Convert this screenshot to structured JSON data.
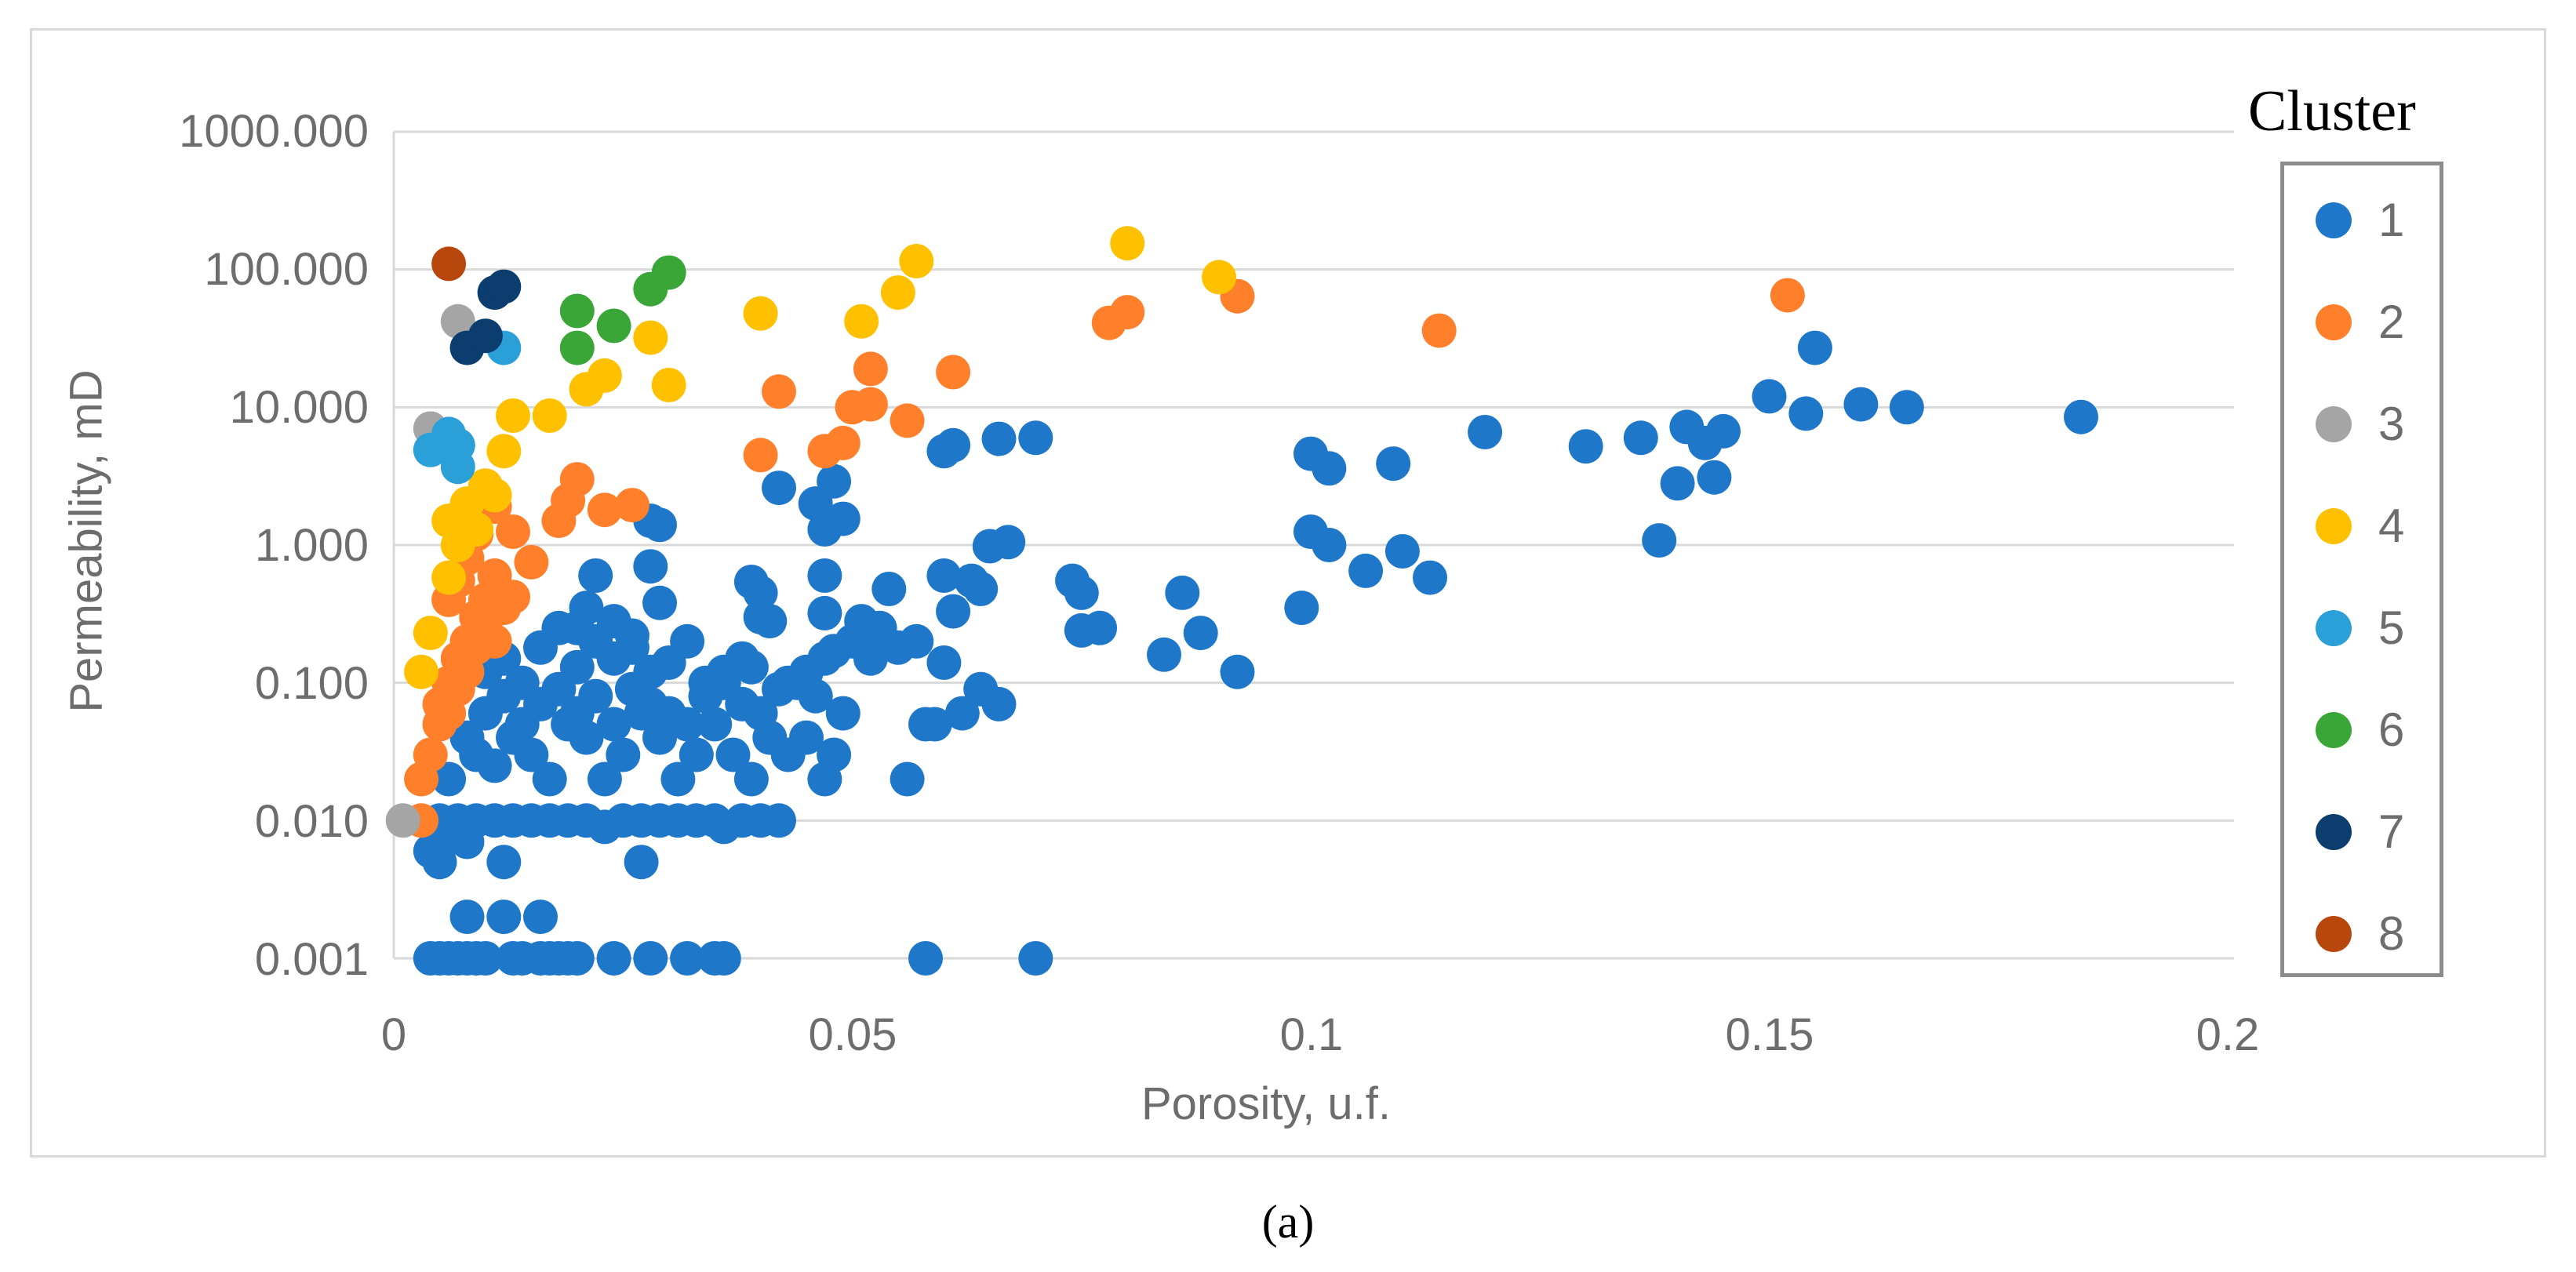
{
  "caption": "(a)",
  "chart_data": {
    "type": "scatter",
    "title": "",
    "xlabel": "Porosity, u.f.",
    "ylabel": "Permeability, mD",
    "xlim": [
      0,
      0.2
    ],
    "ylim": [
      0.001,
      1000
    ],
    "yscale": "log",
    "x_ticks": [
      0,
      0.05,
      0.1,
      0.15,
      0.2
    ],
    "x_tick_labels": [
      "0",
      "0.05",
      "0.1",
      "0.15",
      "0.2"
    ],
    "y_ticks": [
      0.001,
      0.01,
      0.1,
      1,
      10,
      100,
      1000
    ],
    "y_tick_labels": [
      "0.001",
      "0.010",
      "0.100",
      "1.000",
      "10.000",
      "100.000",
      "1000.000"
    ],
    "grid": "horizontal",
    "legend_title": "Cluster",
    "legend_position": "right",
    "series": [
      {
        "name": "1",
        "color": "#1f77c9",
        "points": [
          [
            0.004,
            0.001
          ],
          [
            0.005,
            0.001
          ],
          [
            0.006,
            0.001
          ],
          [
            0.007,
            0.001
          ],
          [
            0.008,
            0.001
          ],
          [
            0.009,
            0.001
          ],
          [
            0.01,
            0.001
          ],
          [
            0.013,
            0.001
          ],
          [
            0.014,
            0.001
          ],
          [
            0.016,
            0.001
          ],
          [
            0.017,
            0.001
          ],
          [
            0.018,
            0.001
          ],
          [
            0.019,
            0.001
          ],
          [
            0.02,
            0.001
          ],
          [
            0.024,
            0.001
          ],
          [
            0.028,
            0.001
          ],
          [
            0.032,
            0.001
          ],
          [
            0.035,
            0.001
          ],
          [
            0.036,
            0.001
          ],
          [
            0.058,
            0.001
          ],
          [
            0.07,
            0.001
          ],
          [
            0.008,
            0.002
          ],
          [
            0.012,
            0.002
          ],
          [
            0.016,
            0.002
          ],
          [
            0.004,
            0.006
          ],
          [
            0.005,
            0.005
          ],
          [
            0.006,
            0.008
          ],
          [
            0.008,
            0.007
          ],
          [
            0.012,
            0.005
          ],
          [
            0.027,
            0.005
          ],
          [
            0.005,
            0.01
          ],
          [
            0.007,
            0.01
          ],
          [
            0.009,
            0.01
          ],
          [
            0.011,
            0.01
          ],
          [
            0.013,
            0.01
          ],
          [
            0.015,
            0.01
          ],
          [
            0.017,
            0.01
          ],
          [
            0.019,
            0.01
          ],
          [
            0.021,
            0.01
          ],
          [
            0.023,
            0.009
          ],
          [
            0.025,
            0.01
          ],
          [
            0.027,
            0.01
          ],
          [
            0.029,
            0.01
          ],
          [
            0.031,
            0.01
          ],
          [
            0.033,
            0.01
          ],
          [
            0.035,
            0.01
          ],
          [
            0.036,
            0.009
          ],
          [
            0.038,
            0.01
          ],
          [
            0.04,
            0.01
          ],
          [
            0.042,
            0.01
          ],
          [
            0.006,
            0.02
          ],
          [
            0.009,
            0.03
          ],
          [
            0.011,
            0.025
          ],
          [
            0.013,
            0.04
          ],
          [
            0.015,
            0.03
          ],
          [
            0.017,
            0.02
          ],
          [
            0.019,
            0.05
          ],
          [
            0.021,
            0.04
          ],
          [
            0.023,
            0.02
          ],
          [
            0.025,
            0.03
          ],
          [
            0.027,
            0.06
          ],
          [
            0.029,
            0.04
          ],
          [
            0.031,
            0.02
          ],
          [
            0.033,
            0.03
          ],
          [
            0.035,
            0.05
          ],
          [
            0.037,
            0.03
          ],
          [
            0.039,
            0.02
          ],
          [
            0.041,
            0.04
          ],
          [
            0.043,
            0.03
          ],
          [
            0.045,
            0.04
          ],
          [
            0.047,
            0.02
          ],
          [
            0.048,
            0.03
          ],
          [
            0.049,
            0.06
          ],
          [
            0.008,
            0.04
          ],
          [
            0.01,
            0.06
          ],
          [
            0.012,
            0.08
          ],
          [
            0.014,
            0.05
          ],
          [
            0.016,
            0.07
          ],
          [
            0.018,
            0.09
          ],
          [
            0.02,
            0.06
          ],
          [
            0.022,
            0.08
          ],
          [
            0.024,
            0.05
          ],
          [
            0.026,
            0.09
          ],
          [
            0.028,
            0.07
          ],
          [
            0.03,
            0.06
          ],
          [
            0.032,
            0.05
          ],
          [
            0.034,
            0.08
          ],
          [
            0.036,
            0.1
          ],
          [
            0.038,
            0.07
          ],
          [
            0.04,
            0.06
          ],
          [
            0.042,
            0.09
          ],
          [
            0.044,
            0.1
          ],
          [
            0.046,
            0.08
          ],
          [
            0.01,
            0.12
          ],
          [
            0.012,
            0.15
          ],
          [
            0.014,
            0.1
          ],
          [
            0.016,
            0.18
          ],
          [
            0.018,
            0.25
          ],
          [
            0.02,
            0.13
          ],
          [
            0.022,
            0.2
          ],
          [
            0.024,
            0.15
          ],
          [
            0.026,
            0.22
          ],
          [
            0.028,
            0.12
          ],
          [
            0.03,
            0.14
          ],
          [
            0.032,
            0.2
          ],
          [
            0.034,
            0.1
          ],
          [
            0.036,
            0.12
          ],
          [
            0.038,
            0.15
          ],
          [
            0.039,
            0.13
          ],
          [
            0.04,
            0.3
          ],
          [
            0.043,
            0.1
          ],
          [
            0.045,
            0.12
          ],
          [
            0.047,
            0.15
          ],
          [
            0.048,
            0.17
          ],
          [
            0.02,
            0.25
          ],
          [
            0.021,
            0.35
          ],
          [
            0.022,
            0.6
          ],
          [
            0.024,
            0.28
          ],
          [
            0.026,
            0.18
          ],
          [
            0.028,
            0.7
          ],
          [
            0.029,
            0.38
          ],
          [
            0.039,
            0.54
          ],
          [
            0.04,
            0.45
          ],
          [
            0.041,
            0.28
          ],
          [
            0.047,
            0.32
          ],
          [
            0.047,
            0.6
          ],
          [
            0.028,
            1.5
          ],
          [
            0.029,
            1.4
          ],
          [
            0.042,
            2.6
          ],
          [
            0.046,
            2.0
          ],
          [
            0.047,
            1.3
          ],
          [
            0.048,
            2.9
          ],
          [
            0.049,
            1.55
          ],
          [
            0.05,
            0.2
          ],
          [
            0.051,
            0.28
          ],
          [
            0.052,
            0.15
          ],
          [
            0.053,
            0.25
          ],
          [
            0.054,
            0.48
          ],
          [
            0.055,
            0.18
          ],
          [
            0.056,
            0.02
          ],
          [
            0.057,
            0.2
          ],
          [
            0.058,
            0.05
          ],
          [
            0.059,
            0.05
          ],
          [
            0.06,
            0.6
          ],
          [
            0.06,
            0.14
          ],
          [
            0.061,
            0.33
          ],
          [
            0.062,
            0.06
          ],
          [
            0.063,
            0.55
          ],
          [
            0.064,
            0.09
          ],
          [
            0.064,
            0.48
          ],
          [
            0.065,
            0.98
          ],
          [
            0.066,
            0.07
          ],
          [
            0.067,
            1.05
          ],
          [
            0.06,
            4.8
          ],
          [
            0.061,
            5.3
          ],
          [
            0.066,
            5.9
          ],
          [
            0.07,
            6.0
          ],
          [
            0.074,
            0.55
          ],
          [
            0.075,
            0.24
          ],
          [
            0.075,
            0.45
          ],
          [
            0.077,
            0.25
          ],
          [
            0.084,
            0.16
          ],
          [
            0.086,
            0.45
          ],
          [
            0.088,
            0.23
          ],
          [
            0.092,
            0.12
          ],
          [
            0.099,
            0.35
          ],
          [
            0.1,
            1.25
          ],
          [
            0.102,
            1.0
          ],
          [
            0.106,
            0.65
          ],
          [
            0.11,
            0.9
          ],
          [
            0.113,
            0.58
          ],
          [
            0.1,
            4.6
          ],
          [
            0.102,
            3.6
          ],
          [
            0.109,
            3.9
          ],
          [
            0.119,
            6.6
          ],
          [
            0.13,
            5.2
          ],
          [
            0.136,
            6.0
          ],
          [
            0.138,
            1.08
          ],
          [
            0.14,
            2.8
          ],
          [
            0.141,
            7.2
          ],
          [
            0.143,
            5.5
          ],
          [
            0.144,
            3.1
          ],
          [
            0.145,
            6.7
          ],
          [
            0.15,
            12.0
          ],
          [
            0.154,
            9.0
          ],
          [
            0.155,
            27.0
          ],
          [
            0.16,
            10.5
          ],
          [
            0.165,
            10.0
          ],
          [
            0.184,
            8.5
          ]
        ]
      },
      {
        "name": "2",
        "color": "#ff7f2a",
        "points": [
          [
            0.003,
            0.01
          ],
          [
            0.003,
            0.02
          ],
          [
            0.004,
            0.03
          ],
          [
            0.005,
            0.05
          ],
          [
            0.005,
            0.07
          ],
          [
            0.006,
            0.06
          ],
          [
            0.006,
            0.1
          ],
          [
            0.007,
            0.15
          ],
          [
            0.007,
            0.09
          ],
          [
            0.008,
            0.2
          ],
          [
            0.008,
            0.12
          ],
          [
            0.009,
            0.3
          ],
          [
            0.009,
            0.18
          ],
          [
            0.01,
            0.25
          ],
          [
            0.01,
            0.4
          ],
          [
            0.011,
            0.6
          ],
          [
            0.011,
            0.2
          ],
          [
            0.012,
            0.35
          ],
          [
            0.006,
            0.4
          ],
          [
            0.007,
            0.55
          ],
          [
            0.008,
            0.8
          ],
          [
            0.009,
            1.2
          ],
          [
            0.013,
            1.25
          ],
          [
            0.011,
            1.9
          ],
          [
            0.013,
            0.42
          ],
          [
            0.015,
            0.75
          ],
          [
            0.018,
            1.5
          ],
          [
            0.019,
            2.1
          ],
          [
            0.02,
            3.0
          ],
          [
            0.023,
            1.8
          ],
          [
            0.026,
            1.95
          ],
          [
            0.04,
            4.5
          ],
          [
            0.042,
            13.0
          ],
          [
            0.047,
            4.8
          ],
          [
            0.049,
            5.5
          ],
          [
            0.05,
            10.0
          ],
          [
            0.052,
            10.5
          ],
          [
            0.052,
            19.0
          ],
          [
            0.056,
            8.0
          ],
          [
            0.061,
            18.0
          ],
          [
            0.078,
            41.0
          ],
          [
            0.08,
            49.0
          ],
          [
            0.092,
            64.0
          ],
          [
            0.114,
            36.0
          ],
          [
            0.152,
            65.0
          ]
        ]
      },
      {
        "name": "3",
        "color": "#a5a5a5",
        "points": [
          [
            0.001,
            0.01
          ],
          [
            0.004,
            7.0
          ],
          [
            0.007,
            42.0
          ]
        ]
      },
      {
        "name": "4",
        "color": "#ffc000",
        "points": [
          [
            0.003,
            0.12
          ],
          [
            0.004,
            0.23
          ],
          [
            0.006,
            0.58
          ],
          [
            0.006,
            1.5
          ],
          [
            0.007,
            1.0
          ],
          [
            0.008,
            2.0
          ],
          [
            0.009,
            1.3
          ],
          [
            0.01,
            2.7
          ],
          [
            0.011,
            2.3
          ],
          [
            0.012,
            4.8
          ],
          [
            0.013,
            8.7
          ],
          [
            0.017,
            8.7
          ],
          [
            0.021,
            13.5
          ],
          [
            0.023,
            17.0
          ],
          [
            0.028,
            32.0
          ],
          [
            0.03,
            14.5
          ],
          [
            0.04,
            48.0
          ],
          [
            0.051,
            42.0
          ],
          [
            0.055,
            68.0
          ],
          [
            0.057,
            115.0
          ],
          [
            0.08,
            155.0
          ],
          [
            0.09,
            88.0
          ]
        ]
      },
      {
        "name": "5",
        "color": "#2a9fd8",
        "points": [
          [
            0.004,
            4.9
          ],
          [
            0.006,
            6.4
          ],
          [
            0.007,
            5.3
          ],
          [
            0.007,
            3.7
          ],
          [
            0.012,
            27.0
          ]
        ]
      },
      {
        "name": "6",
        "color": "#3aa637",
        "points": [
          [
            0.02,
            27.0
          ],
          [
            0.02,
            50.0
          ],
          [
            0.024,
            39.0
          ],
          [
            0.028,
            72.0
          ],
          [
            0.03,
            95.0
          ]
        ]
      },
      {
        "name": "7",
        "color": "#0b3d6e",
        "points": [
          [
            0.008,
            27.0
          ],
          [
            0.01,
            33.0
          ],
          [
            0.011,
            68.0
          ],
          [
            0.012,
            75.0
          ]
        ]
      },
      {
        "name": "8",
        "color": "#b8470e",
        "points": [
          [
            0.006,
            110.0
          ]
        ]
      }
    ]
  }
}
